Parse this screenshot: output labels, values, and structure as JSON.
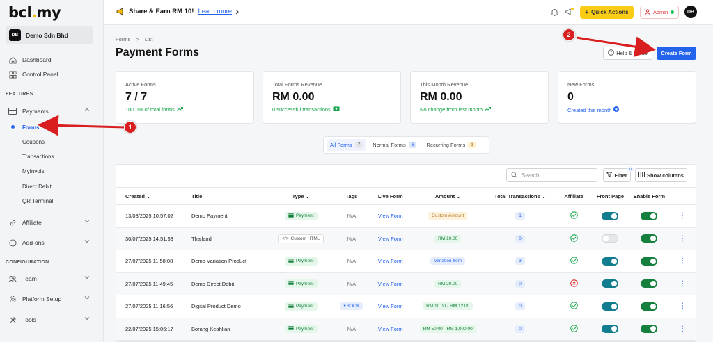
{
  "sidebar": {
    "logo_main": "bcl",
    "logo_dot": ".",
    "logo_end": "my",
    "company": {
      "initials": "DB",
      "name": "Demo Sdn Bhd"
    },
    "items": [
      {
        "label": "Dashboard",
        "icon": "home-icon"
      },
      {
        "label": "Control Panel",
        "icon": "grid-icon"
      }
    ],
    "features_label": "FEATURES",
    "payments_label": "Payments",
    "payments_sub": [
      "Forms",
      "Coupons",
      "Transactions",
      "MyInvois",
      "Direct Debit",
      "QR Terminal"
    ],
    "affiliate_label": "Affiliate",
    "addons_label": "Add-ons",
    "configuration_label": "CONFIGURATION",
    "team_label": "Team",
    "platform_label": "Platform Setup",
    "tools_label": "Tools"
  },
  "topbar": {
    "share_text": "Share & Earn RM 10!",
    "learn_more": "Learn more",
    "quick_actions": "Quick Actions",
    "admin_label": "Admin",
    "avatar": "DB"
  },
  "main": {
    "breadcrumb_1": "Forms",
    "breadcrumb_sep": ">",
    "breadcrumb_2": "List",
    "title": "Payment Forms",
    "help_label": "Help & Guide",
    "create_label": "Create Form"
  },
  "cards": [
    {
      "label": "Active Forms",
      "value": "7 / 7",
      "sub": "100.0% of total forms"
    },
    {
      "label": "Total Forms Revenue",
      "value": "RM 0.00",
      "sub": "0 successful transactions"
    },
    {
      "label": "This Month Revenue",
      "value": "RM 0.00",
      "sub": "No change from last month"
    },
    {
      "label": "New Forms",
      "value": "0",
      "sub": "Created this month"
    }
  ],
  "tabs": [
    {
      "label": "All Forms",
      "count": "7"
    },
    {
      "label": "Normal Forms",
      "count": "6"
    },
    {
      "label": "Recurring Forms",
      "count": "1"
    }
  ],
  "toolbar": {
    "search_placeholder": "Search",
    "filter_label": "Filter",
    "filter_badge": "0",
    "columns_label": "Show columns"
  },
  "table": {
    "headers": [
      "Created",
      "Title",
      "Type",
      "Tags",
      "Live Form",
      "Amount",
      "Total Transactions",
      "Affiliate",
      "Front Page",
      "Enable Form"
    ],
    "rows": [
      {
        "created": "13/08/2025 10:57:02",
        "title": "Demo Payment",
        "type": "Payment",
        "tags": "N/A",
        "live": "View Form",
        "amount": "Custom Amount",
        "tx": "1",
        "affiliate": "ok",
        "front": true,
        "enable": true
      },
      {
        "created": "30/07/2025 14:51:53",
        "title": "Thailand",
        "type": "Custom HTML",
        "tags": "N/A",
        "live": "View Form",
        "amount": "RM 10.00",
        "tx": "0",
        "affiliate": "ok",
        "front": false,
        "enable": true
      },
      {
        "created": "27/07/2025 11:58:08",
        "title": "Demo Variation Product",
        "type": "Payment",
        "tags": "N/A",
        "live": "View Form",
        "amount": "Variation Item",
        "tx": "3",
        "affiliate": "ok",
        "front": true,
        "enable": true
      },
      {
        "created": "27/07/2025 11:49:45",
        "title": "Demo Direct Debit",
        "type": "Payment",
        "tags": "N/A",
        "live": "View Form",
        "amount": "RM 20.00",
        "tx": "0",
        "affiliate": "no",
        "front": true,
        "enable": true
      },
      {
        "created": "27/07/2025 11:16:56",
        "title": "Digital Product Demo",
        "type": "Payment",
        "tags": "EBOOK",
        "live": "View Form",
        "amount": "RM 10.00 - RM 12.00",
        "tx": "0",
        "affiliate": "ok",
        "front": true,
        "enable": true
      },
      {
        "created": "22/07/2025 15:06:17",
        "title": "Borang Keahlian",
        "type": "Payment",
        "tags": "N/A",
        "live": "View Form",
        "amount": "RM 50.00 - RM 1,000.00",
        "tx": "0",
        "affiliate": "ok",
        "front": true,
        "enable": true
      }
    ]
  },
  "annotations": [
    "1",
    "2"
  ],
  "colors": {
    "accent": "#2463eb",
    "annotation": "#d81e1e",
    "quick": "#facc15"
  }
}
